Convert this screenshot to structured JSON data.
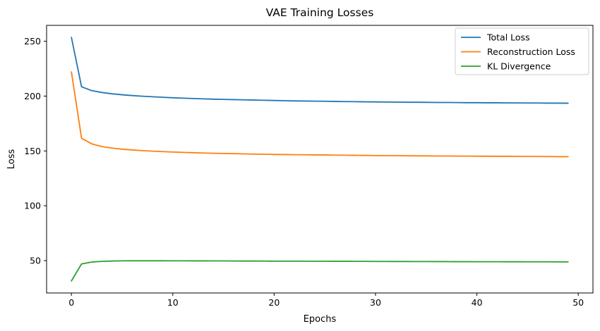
{
  "chart_data": {
    "type": "line",
    "title": "VAE Training Losses",
    "xlabel": "Epochs",
    "ylabel": "Loss",
    "xlim": [
      -2.45,
      51.45
    ],
    "ylim": [
      20.5,
      264.5
    ],
    "xticks": [
      0,
      10,
      20,
      30,
      40,
      50
    ],
    "yticks": [
      50,
      100,
      150,
      200,
      250
    ],
    "grid": false,
    "legend_position": "top-right",
    "x": [
      0,
      1,
      2,
      3,
      4,
      5,
      6,
      7,
      8,
      9,
      10,
      11,
      12,
      13,
      14,
      15,
      16,
      17,
      18,
      19,
      20,
      21,
      22,
      23,
      24,
      25,
      26,
      27,
      28,
      29,
      30,
      31,
      32,
      33,
      34,
      35,
      36,
      37,
      38,
      39,
      40,
      41,
      42,
      43,
      44,
      45,
      46,
      47,
      48,
      49
    ],
    "series": [
      {
        "name": "Total Loss",
        "color": "#1f77b4",
        "values": [
          253.5,
          208.5,
          205.0,
          203.3,
          202.1,
          201.2,
          200.5,
          199.9,
          199.4,
          198.9,
          198.5,
          198.1,
          197.8,
          197.5,
          197.2,
          197.0,
          196.8,
          196.6,
          196.4,
          196.2,
          196.0,
          195.8,
          195.6,
          195.5,
          195.4,
          195.3,
          195.1,
          195.0,
          194.9,
          194.8,
          194.7,
          194.6,
          194.5,
          194.4,
          194.4,
          194.3,
          194.2,
          194.2,
          194.1,
          194.0,
          194.0,
          193.9,
          193.9,
          193.8,
          193.8,
          193.7,
          193.7,
          193.6,
          193.6,
          193.5
        ]
      },
      {
        "name": "Reconstruction Loss",
        "color": "#ff7f0e",
        "values": [
          222.0,
          161.5,
          156.5,
          154.0,
          152.6,
          151.6,
          150.9,
          150.3,
          149.8,
          149.4,
          149.0,
          148.7,
          148.4,
          148.1,
          147.9,
          147.7,
          147.5,
          147.3,
          147.1,
          147.0,
          146.8,
          146.7,
          146.6,
          146.5,
          146.4,
          146.3,
          146.2,
          146.1,
          146.0,
          145.9,
          145.8,
          145.7,
          145.7,
          145.6,
          145.5,
          145.5,
          145.4,
          145.4,
          145.3,
          145.3,
          145.2,
          145.2,
          145.1,
          145.1,
          145.0,
          145.0,
          144.9,
          144.9,
          144.8,
          144.8
        ]
      },
      {
        "name": "KL Divergence",
        "color": "#2ca02c",
        "values": [
          31.5,
          47.0,
          48.7,
          49.3,
          49.6,
          49.8,
          49.85,
          49.85,
          49.85,
          49.85,
          49.8,
          49.8,
          49.75,
          49.75,
          49.7,
          49.7,
          49.65,
          49.6,
          49.6,
          49.55,
          49.5,
          49.5,
          49.45,
          49.45,
          49.4,
          49.4,
          49.35,
          49.35,
          49.3,
          49.3,
          49.25,
          49.25,
          49.2,
          49.2,
          49.15,
          49.15,
          49.1,
          49.1,
          49.05,
          49.05,
          49.0,
          49.0,
          49.0,
          48.95,
          48.95,
          48.9,
          48.9,
          48.9,
          48.85,
          48.85
        ]
      }
    ]
  }
}
